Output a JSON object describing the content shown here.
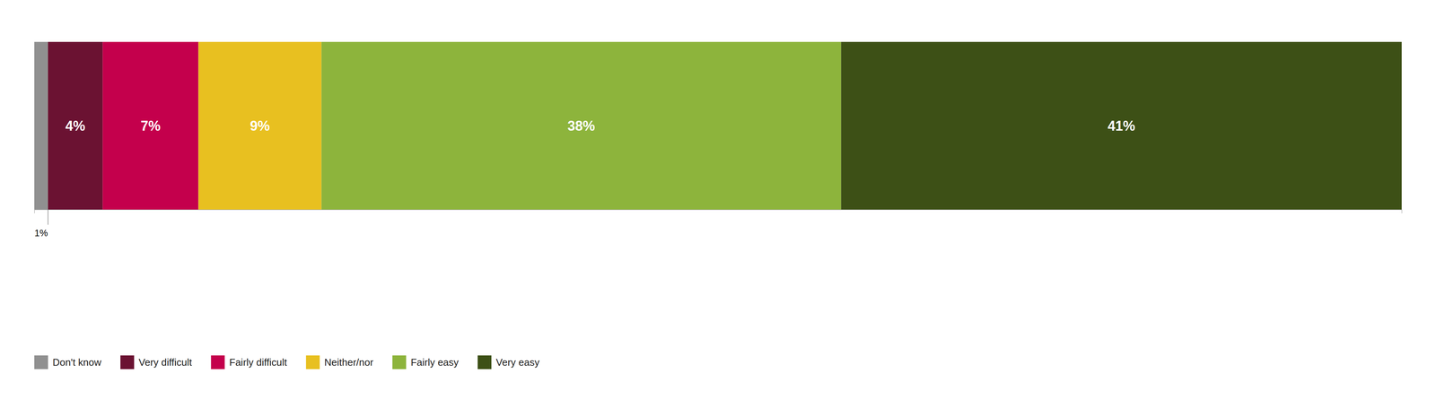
{
  "chart_data": {
    "type": "bar",
    "orientation": "horizontal",
    "stacked": true,
    "categories": [
      null
    ],
    "series": [
      {
        "name": "Don't know",
        "color": "#909090",
        "values": [
          1
        ],
        "value_labels": [
          "1%"
        ]
      },
      {
        "name": "Very difficult",
        "color": "#6B1232",
        "values": [
          4
        ],
        "value_labels": [
          "4%"
        ]
      },
      {
        "name": "Fairly difficult",
        "color": "#C4004C",
        "values": [
          7
        ],
        "value_labels": [
          "7%"
        ]
      },
      {
        "name": "Neither/nor",
        "color": "#E8C020",
        "values": [
          9
        ],
        "value_labels": [
          "9%"
        ]
      },
      {
        "name": "Fairly easy",
        "color": "#8DB43C",
        "values": [
          38
        ],
        "value_labels": [
          "38%"
        ]
      },
      {
        "name": "Very easy",
        "color": "#3D5016",
        "values": [
          41
        ],
        "value_labels": [
          "41%"
        ]
      }
    ],
    "xlim": [
      0,
      100
    ],
    "tick_labels": false,
    "data_labels": true,
    "legend": "lower left",
    "grid": false
  }
}
